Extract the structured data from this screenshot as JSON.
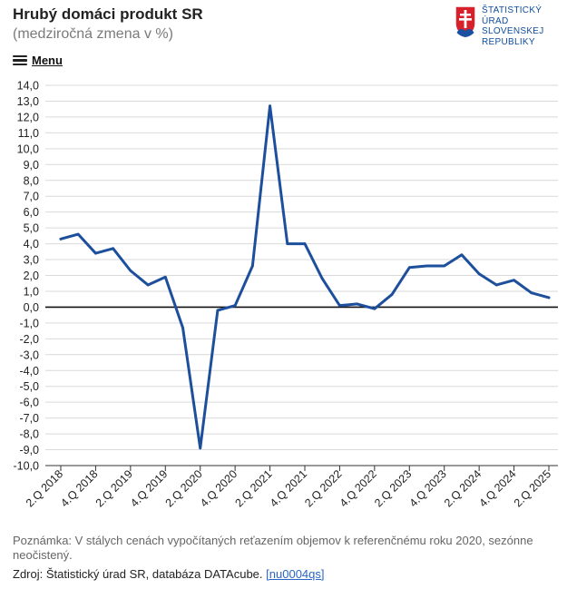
{
  "header": {
    "title": "Hrubý domáci produkt SR",
    "subtitle": "(medziročná zmena v %)",
    "menu_label": "Menu"
  },
  "logo": {
    "lines": [
      "ŠTATISTICKÝ",
      "ÚRAD",
      "SLOVENSKEJ",
      "REPUBLIKY"
    ],
    "color": "#0f4c9c"
  },
  "chart_data": {
    "type": "line",
    "title": "Hrubý domáci produkt SR",
    "ylabel": "medziročná zmena v %",
    "xlabel": "",
    "ylim": [
      -10,
      14
    ],
    "ytick_step": 1,
    "ytick_labels": [
      "14,0",
      "13,0",
      "12,0",
      "11,0",
      "10,0",
      "9,0",
      "8,0",
      "7,0",
      "6,0",
      "5,0",
      "4,0",
      "3,0",
      "2,0",
      "1,0",
      "0,0",
      "-1,0",
      "-2,0",
      "-3,0",
      "-4,0",
      "-5,0",
      "-6,0",
      "-7,0",
      "-8,0",
      "-9,0",
      "-10,0"
    ],
    "grid": true,
    "line_color": "#1d4f9c",
    "categories": [
      "2.Q 2018",
      "3.Q 2018",
      "4.Q 2018",
      "1.Q 2019",
      "2.Q 2019",
      "3.Q 2019",
      "4.Q 2019",
      "1.Q 2020",
      "2.Q 2020",
      "3.Q 2020",
      "4.Q 2020",
      "1.Q 2021",
      "2.Q 2021",
      "3.Q 2021",
      "4.Q 2021",
      "1.Q 2022",
      "2.Q 2022",
      "3.Q 2022",
      "4.Q 2022",
      "1.Q 2023",
      "2.Q 2023",
      "3.Q 2023",
      "4.Q 2023",
      "1.Q 2024",
      "2.Q 2024",
      "3.Q 2024",
      "4.Q 2024",
      "1.Q 2025",
      "2.Q 2025"
    ],
    "series": [
      {
        "name": "HDP",
        "values": [
          4.3,
          4.6,
          3.4,
          3.7,
          2.3,
          1.4,
          1.9,
          -1.3,
          -8.9,
          -0.2,
          0.1,
          2.6,
          12.7,
          4.0,
          4.0,
          1.8,
          0.1,
          0.2,
          -0.1,
          0.8,
          2.5,
          2.6,
          2.6,
          3.3,
          2.1,
          1.4,
          1.7,
          0.9,
          0.6
        ]
      }
    ],
    "x_tick_labels": [
      "2.Q 2018",
      "4.Q 2018",
      "2.Q 2019",
      "4.Q 2019",
      "2.Q 2020",
      "4.Q 2020",
      "2.Q 2021",
      "4.Q 2021",
      "2.Q 2022",
      "4.Q 2022",
      "2.Q 2023",
      "4.Q 2023",
      "2.Q 2024",
      "4.Q 2024",
      "2.Q 2025"
    ]
  },
  "footer": {
    "note": "Poznámka: V stálych cenách vypočítaných reťazením objemov k referenčnému roku 2020, sezónne neočistený.",
    "source_text": "Zdroj: Štatistický úrad SR, databáza DATAcube.",
    "source_link": "[nu0004qs]"
  }
}
